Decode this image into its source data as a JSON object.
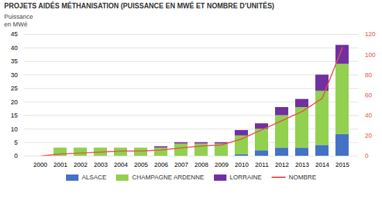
{
  "chart_data": {
    "type": "bar",
    "stacked": true,
    "title": "PROJETS AIDÉS MÉTHANISATION (PUISSANCE EN MWÉ ET NOMBRE D’UNITÉS)",
    "ylabel": "Puissance\nen MWé",
    "categories": [
      "2000",
      "2001",
      "2002",
      "2003",
      "2004",
      "2005",
      "2006",
      "2007",
      "2008",
      "2009",
      "2010",
      "2011",
      "2012",
      "2013",
      "2014",
      "2015"
    ],
    "series": [
      {
        "name": "ALSACE",
        "type": "bar",
        "color": "#4472c4",
        "values": [
          0,
          0,
          0,
          0,
          0,
          0,
          0,
          0,
          0,
          0,
          0.5,
          2,
          3,
          3,
          4,
          8
        ]
      },
      {
        "name": "CHAMPAGNE ARDENNE",
        "type": "bar",
        "color": "#92d050",
        "values": [
          0,
          3,
          3,
          3,
          3,
          3,
          3,
          4.5,
          4.5,
          4.5,
          7,
          8,
          12,
          15,
          20,
          26
        ]
      },
      {
        "name": "LORRAINE",
        "type": "bar",
        "color": "#7030a0",
        "values": [
          0,
          0,
          0,
          0,
          0,
          0,
          0.5,
          0.5,
          0.5,
          0.5,
          2,
          2,
          3,
          3,
          6,
          7
        ]
      },
      {
        "name": "NOMBRE",
        "type": "line",
        "axis": "y2",
        "color": "#e8504a",
        "values": [
          0,
          2,
          3,
          4,
          5,
          5,
          6,
          8,
          10,
          11,
          17,
          26,
          35,
          44,
          57,
          107
        ]
      }
    ],
    "ylim": [
      0,
      45
    ],
    "yticks": [
      0,
      5,
      10,
      15,
      20,
      25,
      30,
      35,
      40,
      45
    ],
    "y2lim": [
      0,
      120
    ],
    "y2ticks": [
      0,
      20,
      40,
      60,
      80,
      100,
      120
    ],
    "grid": true,
    "legend": "bottom"
  }
}
